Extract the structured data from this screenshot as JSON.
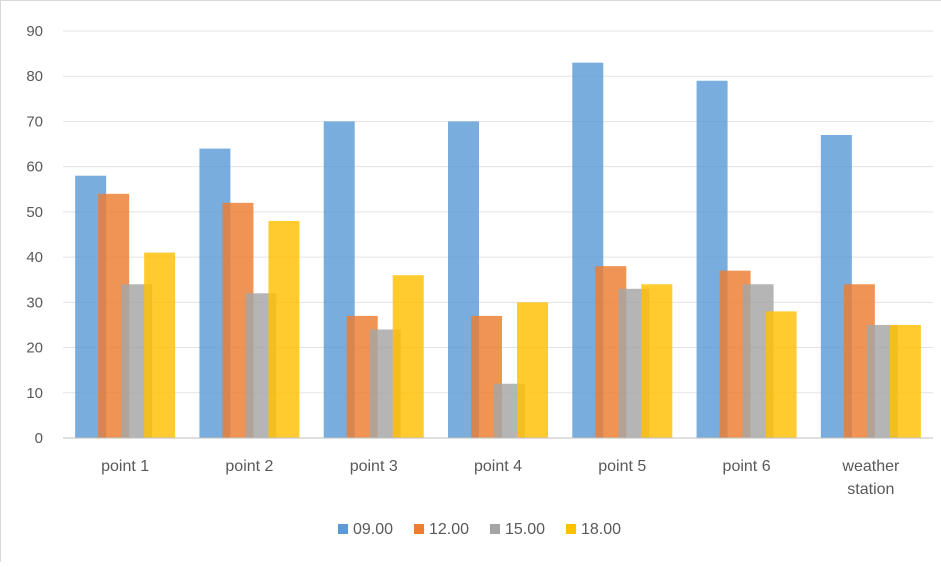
{
  "chart_data": {
    "type": "bar",
    "categories": [
      "point 1",
      "point 2",
      "point 3",
      "point 4",
      "point 5",
      "point 6",
      "weather station"
    ],
    "series": [
      {
        "name": "09.00",
        "color": "#5b9bd5",
        "values": [
          58,
          64,
          70,
          70,
          83,
          79,
          67
        ]
      },
      {
        "name": "12.00",
        "color": "#ed7d31",
        "values": [
          54,
          52,
          27,
          27,
          38,
          37,
          34
        ]
      },
      {
        "name": "15.00",
        "color": "#a5a5a5",
        "values": [
          34,
          32,
          24,
          12,
          33,
          34,
          25
        ]
      },
      {
        "name": "18.00",
        "color": "#ffc000",
        "values": [
          41,
          48,
          36,
          30,
          34,
          28,
          25
        ]
      }
    ],
    "ylim": [
      0,
      90
    ],
    "yticks": [
      0,
      10,
      20,
      30,
      40,
      50,
      60,
      70,
      80,
      90
    ],
    "grid": true,
    "legend": "bottom",
    "title": "",
    "xlabel": "",
    "ylabel": ""
  }
}
